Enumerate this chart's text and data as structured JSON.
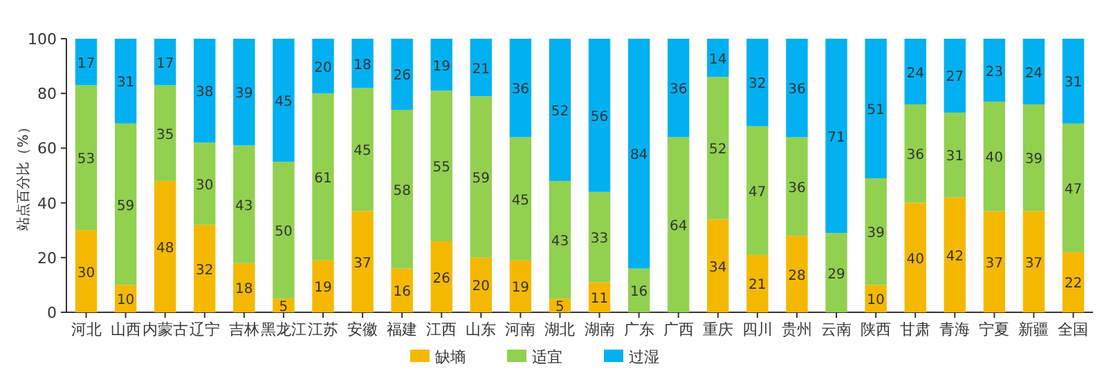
{
  "chart_data": {
    "type": "bar",
    "stacked": true,
    "ylabel": "站点百分比（%）",
    "categories": [
      "河北",
      "山西",
      "内蒙古",
      "辽宁",
      "吉林",
      "黑龙江",
      "江苏",
      "安徽",
      "福建",
      "江西",
      "山东",
      "河南",
      "湖北",
      "湖南",
      "广东",
      "广西",
      "重庆",
      "四川",
      "贵州",
      "云南",
      "陕西",
      "甘肃",
      "青海",
      "宁夏",
      "新疆",
      "全国"
    ],
    "series": [
      {
        "name": "缺墒",
        "color": "#f5b800",
        "values": [
          30,
          10,
          48,
          32,
          18,
          5,
          19,
          37,
          16,
          26,
          20,
          19,
          5,
          11,
          0,
          0,
          34,
          21,
          28,
          0,
          10,
          40,
          42,
          37,
          37,
          22
        ],
        "value_labels": [
          "30",
          "10",
          "48",
          "32",
          "18",
          "5",
          "19",
          "37",
          "16",
          "26",
          "20",
          "19",
          "5",
          "11",
          null,
          null,
          "34",
          "21",
          "28",
          null,
          "10",
          "40",
          "42",
          "37",
          "37",
          "22"
        ]
      },
      {
        "name": "适宜",
        "color": "#92d050",
        "values": [
          53,
          59,
          35,
          30,
          43,
          50,
          61,
          45,
          58,
          55,
          59,
          45,
          43,
          33,
          16,
          64,
          52,
          47,
          36,
          29,
          39,
          36,
          31,
          40,
          39,
          47
        ],
        "value_labels": [
          "53",
          "59",
          "35",
          "30",
          "43",
          "50",
          "61",
          "45",
          "58",
          "55",
          "59",
          "45",
          "43",
          "33",
          "16",
          "64",
          "52",
          "47",
          "36",
          "29",
          "39",
          "36",
          "31",
          "40",
          "39",
          "47"
        ]
      },
      {
        "name": "过湿",
        "color": "#00b0f0",
        "values": [
          17,
          31,
          17,
          38,
          39,
          45,
          20,
          18,
          26,
          19,
          21,
          36,
          52,
          56,
          84,
          36,
          14,
          32,
          36,
          71,
          51,
          24,
          27,
          23,
          24,
          31
        ],
        "value_labels": [
          "17",
          "31",
          "17",
          "38",
          "39",
          "45",
          "20",
          "18",
          "26",
          "19",
          "21",
          "36",
          "52",
          "56",
          "84",
          "36",
          "14",
          "32",
          "36",
          "71",
          "51",
          "24",
          "27",
          "23",
          "24",
          "31"
        ]
      }
    ],
    "ylim": [
      0,
      100
    ],
    "yticks": [
      0,
      20,
      40,
      60,
      80,
      100
    ],
    "legend": "bottom"
  }
}
